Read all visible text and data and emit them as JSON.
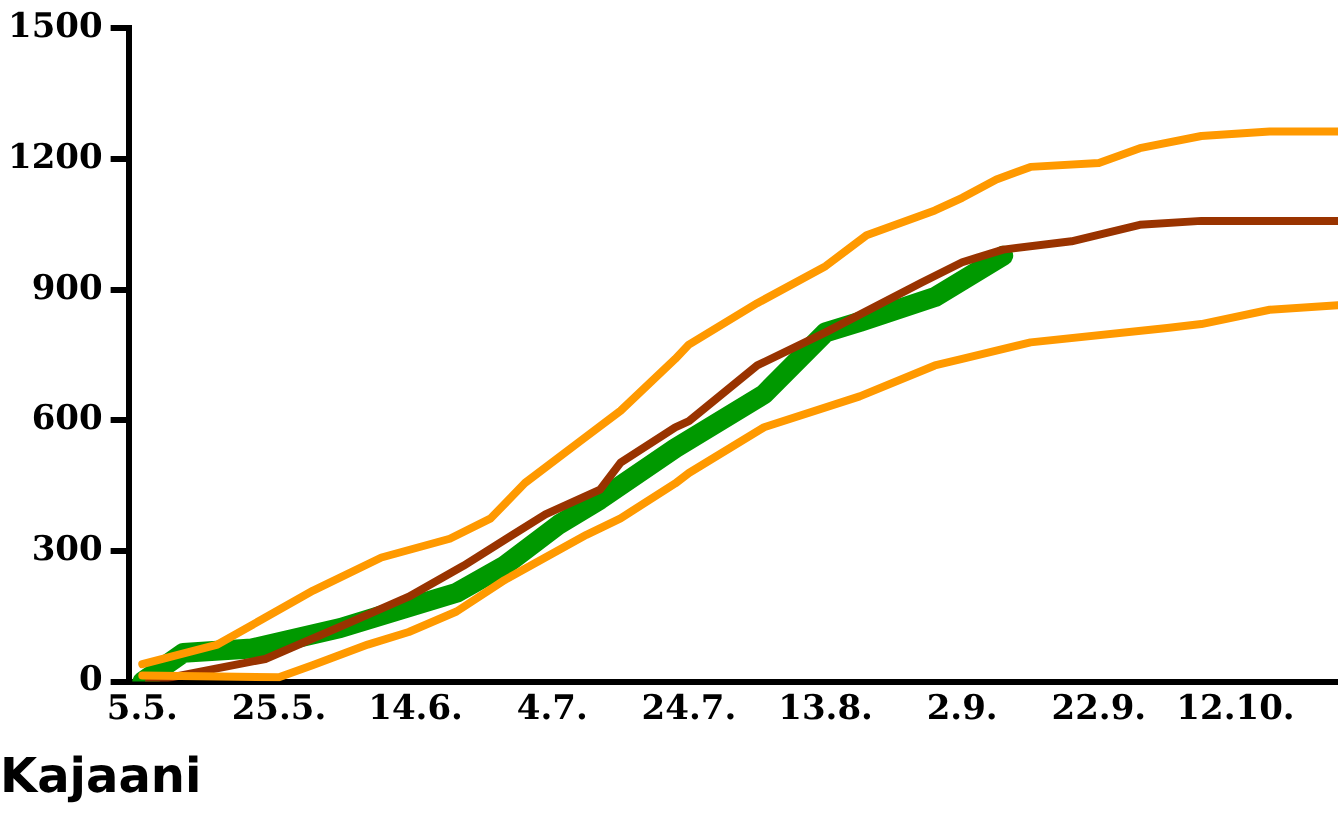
{
  "chart_data": {
    "type": "line",
    "title": "Kajaani",
    "xlim": [
      "--05-03",
      "--10-27"
    ],
    "xticks": [
      {
        "value": "--05-05",
        "label": "5.5."
      },
      {
        "value": "--05-25",
        "label": "25.5."
      },
      {
        "value": "--06-14",
        "label": "14.6."
      },
      {
        "value": "--07-04",
        "label": "4.7."
      },
      {
        "value": "--07-24",
        "label": "24.7."
      },
      {
        "value": "--08-13",
        "label": "13.8."
      },
      {
        "value": "--09-02",
        "label": "2.9."
      },
      {
        "value": "--09-22",
        "label": "22.9."
      },
      {
        "value": "--10-12",
        "label": "12.10."
      }
    ],
    "ylim": [
      0,
      1500
    ],
    "yticks": [
      0,
      300,
      600,
      900,
      1200,
      1500
    ],
    "grid": false,
    "legend": false,
    "marker": "none",
    "line_style": "solid",
    "series": [
      {
        "color": "#ff9900",
        "x": [
          "--05-05",
          "--05-16",
          "--05-30",
          "--06-09",
          "--06-19",
          "--06-25",
          "--06-30",
          "--07-08",
          "--07-14",
          "--07-22",
          "--07-24",
          "--08-03",
          "--08-13",
          "--08-19",
          "--08-29",
          "--09-02",
          "--09-07",
          "--09-12",
          "--09-22",
          "--09-28",
          "--10-07",
          "--10-17",
          "--10-27"
        ],
        "values": [
          40,
          85,
          209,
          285,
          328,
          375,
          456,
          551,
          622,
          741,
          774,
          869,
          954,
          1025,
          1082,
          1111,
          1153,
          1182,
          1191,
          1225,
          1253,
          1263,
          1263
        ]
      },
      {
        "color": "#ff9900",
        "x": [
          "--05-05",
          "--05-25",
          "--05-30",
          "--06-07",
          "--06-13",
          "--06-20",
          "--06-27",
          "--07-09",
          "--07-14",
          "--07-22",
          "--07-24",
          "--08-04",
          "--08-18",
          "--08-29",
          "--09-02",
          "--09-12",
          "--10-02",
          "--10-07",
          "--10-17",
          "--10-27"
        ],
        "values": [
          14,
          10,
          38,
          85,
          114,
          161,
          233,
          337,
          375,
          455,
          479,
          584,
          655,
          726,
          741,
          779,
          812,
          821,
          854,
          864
        ]
      },
      {
        "color": "#993300",
        "x": [
          "--05-06",
          "--05-23",
          "--06-04",
          "--06-13",
          "--06-21",
          "--07-03",
          "--07-11",
          "--07-14",
          "--07-22",
          "--07-24",
          "--08-03",
          "--08-13",
          "--08-27",
          "--09-02",
          "--09-08",
          "--09-18",
          "--09-28",
          "--10-07",
          "--10-27"
        ],
        "values": [
          0,
          52,
          133,
          195,
          266,
          384,
          441,
          503,
          584,
          598,
          726,
          802,
          916,
          963,
          992,
          1011,
          1049,
          1058,
          1058
        ]
      },
      {
        "color": "#009900",
        "x": [
          "--05-05",
          "--05-11",
          "--05-21",
          "--06-03",
          "--06-13",
          "--06-20",
          "--06-27",
          "--07-05",
          "--07-11",
          "--07-22",
          "--08-04",
          "--08-13",
          "--08-18",
          "--08-29",
          "--09-08"
        ],
        "values": [
          0,
          66,
          76,
          123,
          171,
          204,
          266,
          361,
          418,
          536,
          660,
          802,
          826,
          883,
          978
        ]
      }
    ]
  }
}
